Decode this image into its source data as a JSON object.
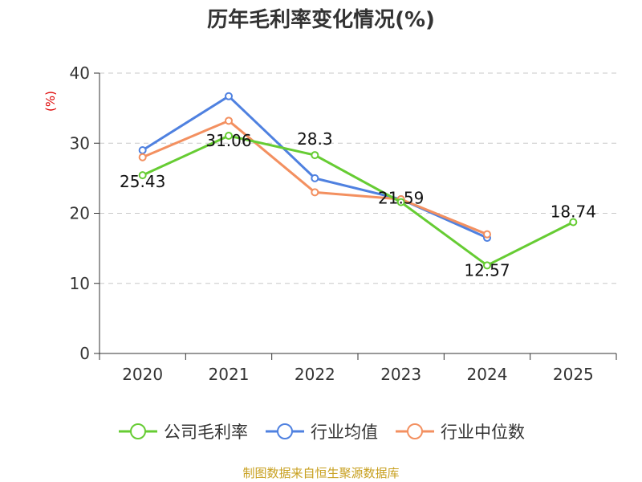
{
  "chart_data": {
    "type": "line",
    "title": "历年毛利率变化情况(%)",
    "ylabel": "(%)",
    "xlabel": "",
    "categories": [
      "2020",
      "2021",
      "2022",
      "2023",
      "2024",
      "2025"
    ],
    "yticks": [
      "0",
      "10",
      "20",
      "30",
      "40"
    ],
    "ylim": [
      0,
      40
    ],
    "grid": true,
    "legend_position": "bottom",
    "series": [
      {
        "name": "公司毛利率",
        "color": "#66cc33",
        "values": [
          25.43,
          31.06,
          28.3,
          21.59,
          12.57,
          18.74
        ],
        "labels": [
          "25.43",
          "31.06",
          "28.3",
          "21.59",
          "12.57",
          "18.74"
        ]
      },
      {
        "name": "行业均值",
        "color": "#4f81e0",
        "values": [
          29,
          36.7,
          25,
          22,
          16.5,
          null
        ]
      },
      {
        "name": "行业中位数",
        "color": "#f39060",
        "values": [
          28,
          33.2,
          23,
          22,
          17,
          null
        ]
      }
    ]
  },
  "source_note": "制图数据来自恒生聚源数据库"
}
